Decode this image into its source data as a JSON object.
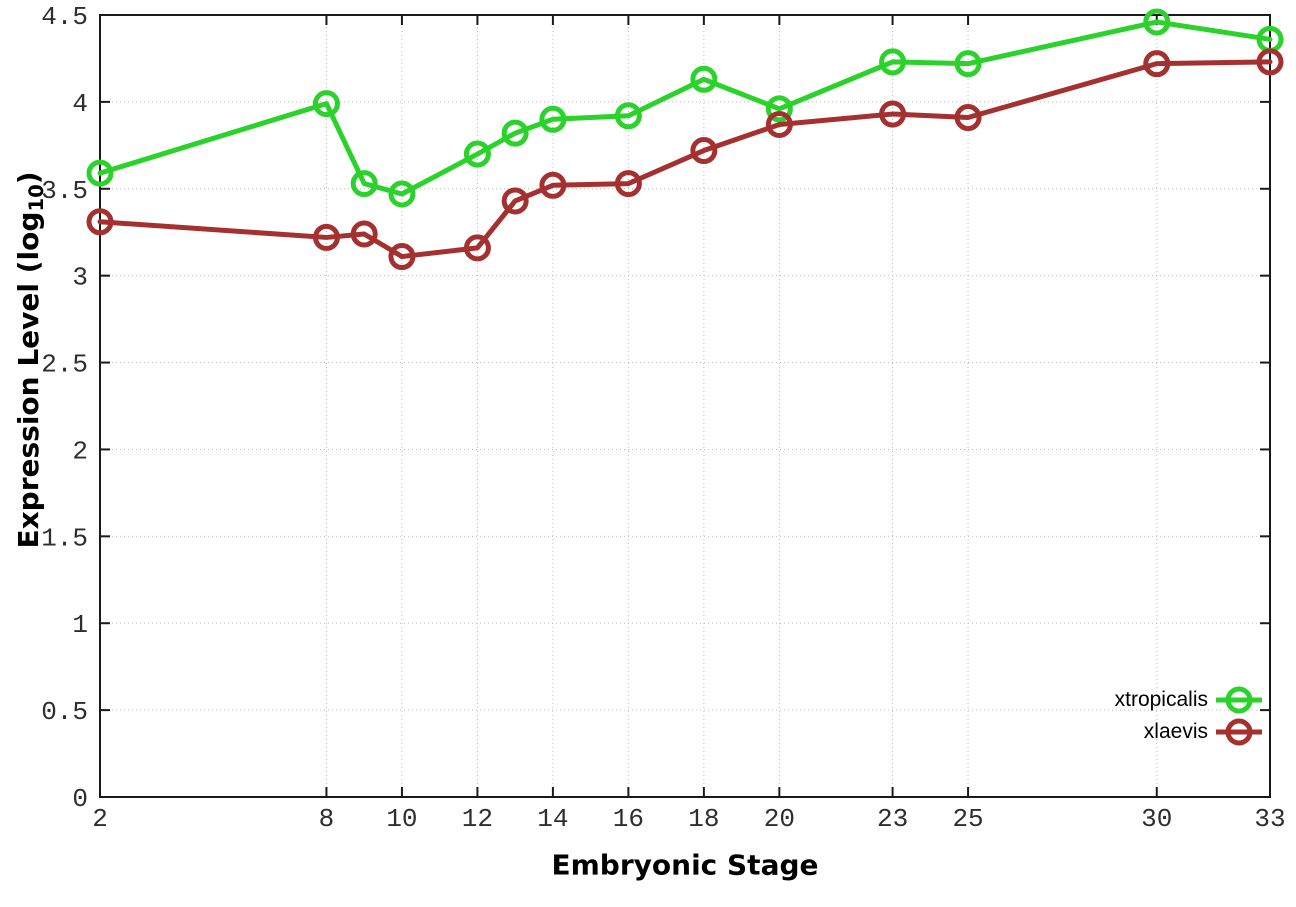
{
  "chart_data": {
    "type": "line",
    "title": "",
    "xlabel": "Embryonic Stage",
    "ylabel": "Expression Level (log10)",
    "ylabel_parts": {
      "main": "Expression Level (log",
      "subscript": "10",
      "suffix": ")"
    },
    "x": [
      2,
      8,
      9,
      10,
      12,
      13,
      14,
      16,
      18,
      20,
      23,
      25,
      30,
      33
    ],
    "xlim": [
      2,
      33
    ],
    "ylim": [
      0,
      4.5
    ],
    "xticks": {
      "values": [
        2,
        8,
        10,
        12,
        14,
        16,
        18,
        20,
        23,
        25,
        30,
        33
      ],
      "labels": [
        "2",
        "8",
        "10",
        "12",
        "14",
        "16",
        "18",
        "20",
        "23",
        "25",
        "30",
        "33"
      ]
    },
    "yticks": {
      "values": [
        0,
        0.5,
        1,
        1.5,
        2,
        2.5,
        3,
        3.5,
        4,
        4.5
      ],
      "labels": [
        "0",
        "0.5",
        "1",
        "1.5",
        "2",
        "2.5",
        "3",
        "3.5",
        "4",
        "4.5"
      ]
    },
    "grid": true,
    "legend_position": "inside-bottom-right",
    "series": [
      {
        "name": "xtropicalis",
        "color": "#2BD22B",
        "marker": "open-circle",
        "values": [
          3.59,
          3.99,
          3.53,
          3.47,
          3.7,
          3.82,
          3.9,
          3.92,
          4.13,
          3.96,
          4.23,
          4.22,
          4.46,
          4.36
        ]
      },
      {
        "name": "xlaevis",
        "color": "#A53030",
        "marker": "open-circle",
        "values": [
          3.31,
          3.22,
          3.24,
          3.11,
          3.16,
          3.43,
          3.52,
          3.53,
          3.72,
          3.87,
          3.93,
          3.91,
          4.22,
          4.23
        ]
      }
    ]
  },
  "style": {
    "background": "#FFFFFF",
    "axis_color": "#1A1A1A",
    "grid_color": "#BDBDBD",
    "tick_label_color": "#2E2E2E",
    "label_color": "#000000"
  }
}
